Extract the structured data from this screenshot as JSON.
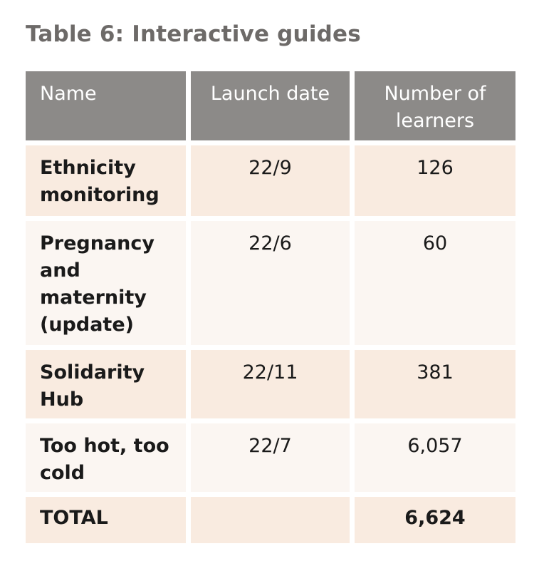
{
  "title": "Table 6: Interactive guides",
  "table": {
    "headers": {
      "name": "Name",
      "launch_date": "Launch date",
      "learners": "Number of learners"
    },
    "rows": [
      {
        "name": "Ethnicity monitoring",
        "launch_date": "22/9",
        "learners": "126"
      },
      {
        "name": "Pregnancy and maternity (update)",
        "launch_date": "22/6",
        "learners": "60"
      },
      {
        "name": "Solidarity Hub",
        "launch_date": "22/11",
        "learners": "381"
      },
      {
        "name": "Too hot, too cold",
        "launch_date": "22/7",
        "learners": "6,057"
      }
    ],
    "total": {
      "label": "TOTAL",
      "launch_date": "",
      "learners": "6,624"
    }
  },
  "colors": {
    "header_bg": "#8c8a88",
    "row_peach": "#f9ebe0",
    "row_light": "#fbf6f2",
    "title": "#6d6a68"
  }
}
